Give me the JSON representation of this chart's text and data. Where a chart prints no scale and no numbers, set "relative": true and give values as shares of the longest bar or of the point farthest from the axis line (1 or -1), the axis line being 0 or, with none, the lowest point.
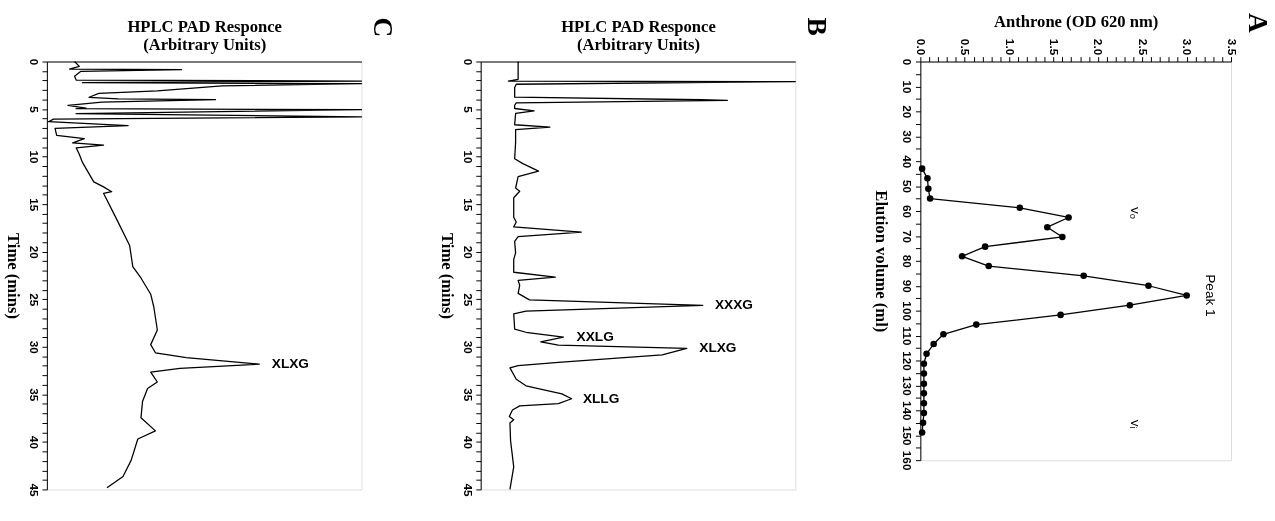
{
  "chart_data": [
    {
      "type": "line",
      "orientation": "horizontal",
      "relative": true,
      "title": "C",
      "xlabel": "HPLC PAD Responce\n(Arbitrary Units)",
      "ylabel": "Time (mins)",
      "ylim": [
        45,
        0
      ],
      "yticks": [
        0,
        {
          "value": 1,
          "label": null
        },
        {
          "value": 2,
          "label": null
        },
        {
          "value": 3,
          "label": null
        },
        {
          "value": 4,
          "label": null
        },
        5,
        {
          "value": 6,
          "label": null
        },
        {
          "value": 7,
          "label": null
        },
        {
          "value": 8,
          "label": null
        },
        {
          "value": 9,
          "label": null
        },
        10,
        {
          "value": 11,
          "label": null
        },
        {
          "value": 12,
          "label": null
        },
        {
          "value": 13,
          "label": null
        },
        {
          "value": 14,
          "label": null
        },
        15,
        {
          "value": 16,
          "label": null
        },
        {
          "value": 17,
          "label": null
        },
        {
          "value": 18,
          "label": null
        },
        {
          "value": 19,
          "label": null
        },
        20,
        {
          "value": 21,
          "label": null
        },
        {
          "value": 22,
          "label": null
        },
        {
          "value": 23,
          "label": null
        },
        {
          "value": 24,
          "label": null
        },
        25,
        {
          "value": 26,
          "label": null
        },
        {
          "value": 27,
          "label": null
        },
        {
          "value": 28,
          "label": null
        },
        {
          "value": 29,
          "label": null
        },
        30,
        {
          "value": 31,
          "label": null
        },
        {
          "value": 32,
          "label": null
        },
        {
          "value": 33,
          "label": null
        },
        {
          "value": 34,
          "label": null
        },
        35,
        {
          "value": 36,
          "label": null
        },
        {
          "value": 37,
          "label": null
        },
        {
          "value": 38,
          "label": null
        },
        {
          "value": 39,
          "label": null
        },
        40,
        {
          "value": 41,
          "label": null
        },
        {
          "value": 42,
          "label": null
        },
        {
          "value": 43,
          "label": null
        },
        {
          "value": 44,
          "label": null
        },
        45
      ],
      "grid": false,
      "line_style": "solid",
      "series": [
        {
          "color": "#000000",
          "x": [
            0,
            0.51,
            0.79,
            0.86,
            1.03,
            1.54,
            1.95,
            2.05,
            2.22,
            2.33,
            2.57,
            3.08,
            3.35,
            3.76,
            3.94,
            4.0,
            4.28,
            4.62,
            4.89,
            4.96,
            5.07,
            5.48,
            5.82,
            6.06,
            6.33,
            6.74,
            7.02,
            7.77,
            8.11,
            8.56,
            8.79,
            9.07,
            9.75,
            10.61,
            12.66,
            13.18,
            13.69,
            13.86,
            16.6,
            19.34,
            21.56,
            22.76,
            24.47,
            25.84,
            28.23,
            29.77,
            30.63,
            31.14,
            31.83,
            32.27,
            32.67,
            33.7,
            34.38,
            35.75,
            37.47,
            38.84,
            39.7,
            41.92,
            43.63,
            44.83
          ],
          "values": [
            0.088,
            0.103,
            0.072,
            0.428,
            0.108,
            0.088,
            0.093,
            1.0,
            0.113,
            1.0,
            0.557,
            0.351,
            0.165,
            0.134,
            0.227,
            0.536,
            0.175,
            0.067,
            0.124,
            0.093,
            1.0,
            0.093,
            1.0,
            0.021,
            0.005,
            0.258,
            0.026,
            0.031,
            0.119,
            0.082,
            0.18,
            0.093,
            0.103,
            0.113,
            0.149,
            0.18,
            0.206,
            0.18,
            0.222,
            0.263,
            0.273,
            0.299,
            0.33,
            0.34,
            0.351,
            0.33,
            0.345,
            0.443,
            0.675,
            0.423,
            0.33,
            0.351,
            0.32,
            0.304,
            0.299,
            0.345,
            0.289,
            0.268,
            0.242,
            0.191
          ]
        }
      ],
      "annotations": [
        {
          "text": "XLXG",
          "x": 0.69,
          "y": 31.83
        }
      ]
    },
    {
      "type": "line",
      "orientation": "horizontal",
      "relative": true,
      "title": "B",
      "xlabel": "HPLC PAD Responce\n(Arbitrary Units)",
      "ylabel": "Time (mins)",
      "ylim": [
        45,
        0
      ],
      "yticks": [
        0,
        {
          "value": 1,
          "label": null
        },
        {
          "value": 2,
          "label": null
        },
        {
          "value": 3,
          "label": null
        },
        {
          "value": 4,
          "label": null
        },
        5,
        {
          "value": 6,
          "label": null
        },
        {
          "value": 7,
          "label": null
        },
        {
          "value": 8,
          "label": null
        },
        {
          "value": 9,
          "label": null
        },
        10,
        {
          "value": 11,
          "label": null
        },
        {
          "value": 12,
          "label": null
        },
        {
          "value": 13,
          "label": null
        },
        {
          "value": 14,
          "label": null
        },
        15,
        {
          "value": 16,
          "label": null
        },
        {
          "value": 17,
          "label": null
        },
        {
          "value": 18,
          "label": null
        },
        {
          "value": 19,
          "label": null
        },
        20,
        {
          "value": 21,
          "label": null
        },
        {
          "value": 22,
          "label": null
        },
        {
          "value": 23,
          "label": null
        },
        {
          "value": 24,
          "label": null
        },
        25,
        {
          "value": 26,
          "label": null
        },
        {
          "value": 27,
          "label": null
        },
        {
          "value": 28,
          "label": null
        },
        {
          "value": 29,
          "label": null
        },
        30,
        {
          "value": 31,
          "label": null
        },
        {
          "value": 32,
          "label": null
        },
        {
          "value": 33,
          "label": null
        },
        {
          "value": 34,
          "label": null
        },
        35,
        {
          "value": 36,
          "label": null
        },
        {
          "value": 37,
          "label": null
        },
        {
          "value": 38,
          "label": null
        },
        {
          "value": 39,
          "label": null
        },
        40,
        {
          "value": 41,
          "label": null
        },
        {
          "value": 42,
          "label": null
        },
        {
          "value": 43,
          "label": null
        },
        {
          "value": 44,
          "label": null
        },
        45
      ],
      "grid": false,
      "line_style": "solid",
      "series": [
        {
          "color": "#000000",
          "x": [
            0,
            1.87,
            2.05,
            2.11,
            2.39,
            2.73,
            3.75,
            4.02,
            4.09,
            4.36,
            4.6,
            4.94,
            5.18,
            5.46,
            6.65,
            6.89,
            7.16,
            8.52,
            10.23,
            10.74,
            11.52,
            12.1,
            13.3,
            13.64,
            14.32,
            16.37,
            16.88,
            17.39,
            17.93,
            18.41,
            18.92,
            20.12,
            20.8,
            22.16,
            22.67,
            23.01,
            23.53,
            24.38,
            25.06,
            25.64,
            26.25,
            26.53,
            28.13,
            28.47,
            28.98,
            29.49,
            29.83,
            30.17,
            30.86,
            31.64,
            31.98,
            32.22,
            33.41,
            34.1,
            34.95,
            35.46,
            35.97,
            36.21,
            36.65,
            37.33,
            37.68,
            38.02,
            39.89,
            42.62,
            45
          ],
          "values": [
            0.119,
            0.119,
            0.088,
            1.0,
            0.113,
            0.108,
            0.108,
            0.7,
            0.784,
            0.113,
            0.108,
            0.108,
            0.17,
            0.111,
            0.108,
            0.22,
            0.111,
            0.111,
            0.108,
            0.134,
            0.184,
            0.119,
            0.111,
            0.124,
            0.105,
            0.105,
            0.113,
            0.105,
            0.32,
            0.119,
            0.108,
            0.111,
            0.105,
            0.105,
            0.237,
            0.119,
            0.124,
            0.119,
            0.155,
            0.706,
            0.144,
            0.105,
            0.108,
            0.144,
            0.263,
            0.191,
            0.247,
            0.655,
            0.577,
            0.247,
            0.119,
            0.093,
            0.113,
            0.144,
            0.258,
            0.289,
            0.247,
            0.124,
            0.101,
            0.091,
            0.105,
            0.093,
            0.095,
            0.105,
            0.093
          ]
        }
      ],
      "annotations": [
        {
          "text": "XXXG",
          "x": 0.72,
          "y": 25.64
        },
        {
          "text": "XXLG",
          "x": 0.28,
          "y": 28.98
        },
        {
          "text": "XLXG",
          "x": 0.67,
          "y": 30.17
        },
        {
          "text": "XLLG",
          "x": 0.3,
          "y": 35.46
        }
      ]
    },
    {
      "type": "line",
      "orientation": "horizontal",
      "title": "A",
      "xlabel": "Anthrone (OD 620 nm)",
      "ylabel": "Elution volume (ml)",
      "xlim": [
        0,
        3.5
      ],
      "ylim": [
        160,
        0
      ],
      "xticks": [
        {
          "value": 0,
          "label": "0.0"
        },
        {
          "value": 0.1,
          "label": null
        },
        {
          "value": 0.2,
          "label": null
        },
        {
          "value": 0.3,
          "label": null
        },
        {
          "value": 0.4,
          "label": null
        },
        {
          "value": 0.5,
          "label": "0.5"
        },
        {
          "value": 0.6,
          "label": null
        },
        {
          "value": 0.7,
          "label": null
        },
        {
          "value": 0.8,
          "label": null
        },
        {
          "value": 0.9,
          "label": null
        },
        {
          "value": 1,
          "label": "1.0"
        },
        {
          "value": 1.1,
          "label": null
        },
        {
          "value": 1.2,
          "label": null
        },
        {
          "value": 1.3,
          "label": null
        },
        {
          "value": 1.4,
          "label": null
        },
        {
          "value": 1.5,
          "label": "1.5"
        },
        {
          "value": 1.6,
          "label": null
        },
        {
          "value": 1.7,
          "label": null
        },
        {
          "value": 1.8,
          "label": null
        },
        {
          "value": 1.9,
          "label": null
        },
        {
          "value": 2,
          "label": "2.0"
        },
        {
          "value": 2.1,
          "label": null
        },
        {
          "value": 2.2,
          "label": null
        },
        {
          "value": 2.3,
          "label": null
        },
        {
          "value": 2.4,
          "label": null
        },
        {
          "value": 2.5,
          "label": "2.5"
        },
        {
          "value": 2.6,
          "label": null
        },
        {
          "value": 2.7,
          "label": null
        },
        {
          "value": 2.8,
          "label": null
        },
        {
          "value": 2.9,
          "label": null
        },
        {
          "value": 3,
          "label": "3.0"
        },
        {
          "value": 3.1,
          "label": null
        },
        {
          "value": 3.2,
          "label": null
        },
        {
          "value": 3.3,
          "label": null
        },
        {
          "value": 3.4,
          "label": null
        },
        {
          "value": 3.5,
          "label": "3.5"
        }
      ],
      "yticks": [
        0,
        {
          "value": 5,
          "label": null
        },
        10,
        {
          "value": 15,
          "label": null
        },
        20,
        {
          "value": 25,
          "label": null
        },
        30,
        {
          "value": 35,
          "label": null
        },
        40,
        {
          "value": 45,
          "label": null
        },
        50,
        {
          "value": 55,
          "label": null
        },
        60,
        {
          "value": 65,
          "label": null
        },
        70,
        {
          "value": 75,
          "label": null
        },
        80,
        {
          "value": 85,
          "label": null
        },
        90,
        {
          "value": 95,
          "label": null
        },
        100,
        {
          "value": 105,
          "label": null
        },
        110,
        {
          "value": 115,
          "label": null
        },
        120,
        {
          "value": 125,
          "label": null
        },
        130,
        {
          "value": 135,
          "label": null
        },
        140,
        {
          "value": 145,
          "label": null
        },
        150,
        {
          "value": 155,
          "label": null
        },
        160
      ],
      "grid": false,
      "marker": "circle",
      "line_style": "solid",
      "series": [
        {
          "color": "#000000",
          "x": [
            43.0,
            46.9,
            51.1,
            55.0,
            58.7,
            62.6,
            66.5,
            70.4,
            74.3,
            78.2,
            82.1,
            86.0,
            90.0,
            93.9,
            97.8,
            101.7,
            105.6,
            109.5,
            113.4,
            117.3,
            121.3,
            125.2,
            129.3,
            133.2,
            137.2,
            141.1,
            145.0,
            148.9
          ],
          "values": [
            0.02,
            0.08,
            0.09,
            0.11,
            1.12,
            1.67,
            1.43,
            1.6,
            0.73,
            0.47,
            0.77,
            1.84,
            2.57,
            3.0,
            2.36,
            1.58,
            0.63,
            0.26,
            0.15,
            0.07,
            0.04,
            0.04,
            0.04,
            0.04,
            0.04,
            0.04,
            0.03,
            0.02
          ]
        }
      ],
      "annotations": [
        "vₒ",
        {
          "text": "Peak 1",
          "x": 3.0,
          "y": 93.9
        },
        "vᵢ"
      ]
    }
  ]
}
